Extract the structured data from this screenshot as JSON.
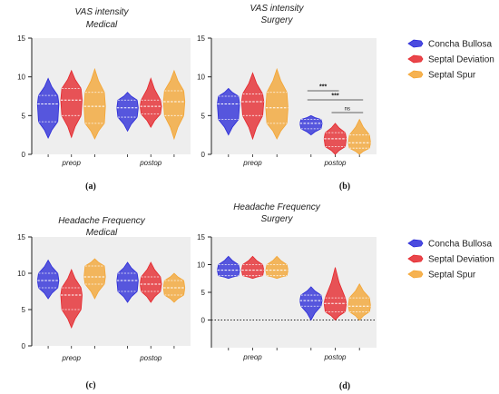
{
  "colors": {
    "concha": "#2b2bd9",
    "septal_dev": "#e5262b",
    "septal_spur": "#f4a533",
    "plot_bg": "#eeeeee"
  },
  "legend": {
    "items": [
      "Concha Bullosa",
      "Septal Deviation",
      "Septal Spur"
    ]
  },
  "panel_captions": [
    "(a)",
    "(b)",
    "(c)",
    "(d)"
  ],
  "chart_data": [
    {
      "type": "violin",
      "caption": "(a)",
      "title_lines": [
        "VAS intensity",
        "Medical"
      ],
      "ylim": [
        0,
        15
      ],
      "yticks": [
        0,
        5,
        10,
        15
      ],
      "groups": [
        "preop",
        "postop"
      ],
      "series": [
        {
          "name": "Concha Bullosa",
          "values": [
            {
              "min": 2.1,
              "max": 9.8,
              "median": 6.5,
              "q1": 4.2,
              "q3": 7.6
            },
            {
              "min": 3.0,
              "max": 8.0,
              "median": 6.0,
              "q1": 4.8,
              "q3": 7.0
            }
          ]
        },
        {
          "name": "Septal Deviation",
          "values": [
            {
              "min": 2.2,
              "max": 10.8,
              "median": 7.0,
              "q1": 5.0,
              "q3": 8.5
            },
            {
              "min": 3.5,
              "max": 9.8,
              "median": 6.2,
              "q1": 5.2,
              "q3": 7.0
            }
          ]
        },
        {
          "name": "Septal Spur",
          "values": [
            {
              "min": 2.0,
              "max": 11.0,
              "median": 6.2,
              "q1": 4.0,
              "q3": 8.0
            },
            {
              "min": 2.0,
              "max": 10.8,
              "median": 6.8,
              "q1": 5.0,
              "q3": 8.2
            }
          ]
        }
      ]
    },
    {
      "type": "violin",
      "caption": "(b)",
      "title_lines": [
        "VAS intensity",
        "Surgery"
      ],
      "ylim": [
        0,
        15
      ],
      "yticks": [
        0,
        5,
        10,
        15
      ],
      "groups": [
        "preop",
        "postop"
      ],
      "series": [
        {
          "name": "Concha Bullosa",
          "values": [
            {
              "min": 2.5,
              "max": 8.5,
              "median": 6.5,
              "q1": 4.5,
              "q3": 7.5
            },
            {
              "min": 2.5,
              "max": 5.0,
              "median": 4.0,
              "q1": 3.3,
              "q3": 4.5
            }
          ]
        },
        {
          "name": "Septal Deviation",
          "values": [
            {
              "min": 2.0,
              "max": 10.5,
              "median": 6.8,
              "q1": 5.0,
              "q3": 7.8
            },
            {
              "min": 0.0,
              "max": 4.0,
              "median": 2.0,
              "q1": 1.0,
              "q3": 2.8
            }
          ]
        },
        {
          "name": "Septal Spur",
          "values": [
            {
              "min": 2.0,
              "max": 11.0,
              "median": 6.0,
              "q1": 4.0,
              "q3": 8.0
            },
            {
              "min": 0.0,
              "max": 4.5,
              "median": 1.5,
              "q1": 0.8,
              "q3": 2.5
            }
          ]
        }
      ],
      "annotations": [
        "***",
        "***",
        "ns"
      ]
    },
    {
      "type": "violin",
      "caption": "(c)",
      "title_lines": [
        "Headache Frequency",
        "Medical"
      ],
      "ylim": [
        0,
        15
      ],
      "yticks": [
        0,
        5,
        10,
        15
      ],
      "groups": [
        "preop",
        "postop"
      ],
      "series": [
        {
          "name": "Concha Bullosa",
          "values": [
            {
              "min": 6.5,
              "max": 11.8,
              "median": 9.0,
              "q1": 8.0,
              "q3": 10.0
            },
            {
              "min": 6.0,
              "max": 11.5,
              "median": 9.0,
              "q1": 7.5,
              "q3": 10.0
            }
          ]
        },
        {
          "name": "Septal Deviation",
          "values": [
            {
              "min": 2.5,
              "max": 10.5,
              "median": 7.0,
              "q1": 5.0,
              "q3": 8.0
            },
            {
              "min": 6.0,
              "max": 11.5,
              "median": 8.5,
              "q1": 7.5,
              "q3": 9.5
            }
          ]
        },
        {
          "name": "Septal Spur",
          "values": [
            {
              "min": 6.5,
              "max": 12.0,
              "median": 9.5,
              "q1": 8.5,
              "q3": 11.0
            },
            {
              "min": 6.0,
              "max": 10.0,
              "median": 8.0,
              "q1": 7.0,
              "q3": 9.0
            }
          ]
        }
      ]
    },
    {
      "type": "violin",
      "caption": "(d)",
      "title_lines": [
        "Headache  Frequency",
        "Surgery"
      ],
      "ylim": [
        -5,
        15
      ],
      "yticks": [
        0,
        5,
        10,
        15
      ],
      "groups": [
        "preop",
        "postop"
      ],
      "series": [
        {
          "name": "Concha Bullosa",
          "values": [
            {
              "min": 7.5,
              "max": 11.5,
              "median": 9.0,
              "q1": 8.0,
              "q3": 10.0
            },
            {
              "min": 0.0,
              "max": 6.0,
              "median": 3.5,
              "q1": 2.5,
              "q3": 4.5
            }
          ]
        },
        {
          "name": "Septal Deviation",
          "values": [
            {
              "min": 7.5,
              "max": 11.5,
              "median": 9.0,
              "q1": 8.0,
              "q3": 10.0
            },
            {
              "min": 0.0,
              "max": 9.5,
              "median": 3.0,
              "q1": 1.5,
              "q3": 4.0
            }
          ]
        },
        {
          "name": "Septal Spur",
          "values": [
            {
              "min": 7.5,
              "max": 11.5,
              "median": 9.0,
              "q1": 8.0,
              "q3": 10.0
            },
            {
              "min": 0.0,
              "max": 6.5,
              "median": 2.5,
              "q1": 1.5,
              "q3": 4.0
            }
          ]
        }
      ],
      "reference_line": {
        "y": 0,
        "style": "dotted"
      }
    }
  ]
}
